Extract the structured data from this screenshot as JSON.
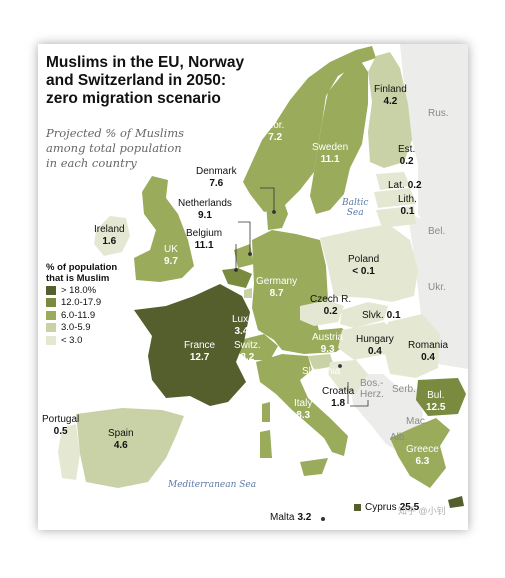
{
  "title": "Muslims in the EU, Norway\nand Switzerland in 2050:\nzero migration scenario",
  "subtitle": "Projected % of Muslims\namong total population\nin each country",
  "colors": {
    "c1": "#555e2d",
    "c2": "#7a8a3f",
    "c3": "#9aab5c",
    "c4": "#c9d2a6",
    "c5": "#e4e8d3",
    "noData": "#ececea",
    "sea": "#ffffff"
  },
  "legend": {
    "title": "% of population\nthat is Muslim",
    "items": [
      {
        "label": "> 18.0%",
        "color": "#555e2d"
      },
      {
        "label": "12.0-17.9",
        "color": "#7a8a3f"
      },
      {
        "label": "6.0-11.9",
        "color": "#9aab5c"
      },
      {
        "label": "3.0-5.9",
        "color": "#c9d2a6"
      },
      {
        "label": "< 3.0",
        "color": "#e4e8d3"
      }
    ]
  },
  "countries": [
    {
      "name": "Finland",
      "value": "4.2"
    },
    {
      "name": "Nor.",
      "value": "7.2"
    },
    {
      "name": "Sweden",
      "value": "11.1"
    },
    {
      "name": "Est.",
      "value": "0.2"
    },
    {
      "name": "Lat.",
      "value": "0.2"
    },
    {
      "name": "Lith.",
      "value": "0.1"
    },
    {
      "name": "Denmark",
      "value": "7.6"
    },
    {
      "name": "Netherlands",
      "value": "9.1"
    },
    {
      "name": "Belgium",
      "value": "11.1"
    },
    {
      "name": "Ireland",
      "value": "1.6"
    },
    {
      "name": "UK",
      "value": "9.7"
    },
    {
      "name": "Poland",
      "value": "< 0.1"
    },
    {
      "name": "Germany",
      "value": "8.7"
    },
    {
      "name": "Czech R.",
      "value": "0.2"
    },
    {
      "name": "Slvk.",
      "value": "0.1"
    },
    {
      "name": "Lux.",
      "value": "3.4"
    },
    {
      "name": "France",
      "value": "12.7"
    },
    {
      "name": "Switz.",
      "value": "8.2"
    },
    {
      "name": "Austria",
      "value": "9.3"
    },
    {
      "name": "Hungary",
      "value": "0.4"
    },
    {
      "name": "Romania",
      "value": "0.4"
    },
    {
      "name": "Slovenia",
      "value": "4.3"
    },
    {
      "name": "Croatia",
      "value": "1.8"
    },
    {
      "name": "Italy",
      "value": "8.3"
    },
    {
      "name": "Bul.",
      "value": "12.5"
    },
    {
      "name": "Portugal",
      "value": "0.5"
    },
    {
      "name": "Spain",
      "value": "4.6"
    },
    {
      "name": "Greece",
      "value": "6.3"
    },
    {
      "name": "Cyprus",
      "value": "25.5"
    },
    {
      "name": "Malta",
      "value": "3.2"
    }
  ],
  "neighbors": [
    "Rus.",
    "Bel.",
    "Ukr.",
    "Bos.-\nHerz.",
    "Serb.",
    "Mac.",
    "Alb."
  ],
  "seas": [
    "Baltic\nSea",
    "Mediterranean Sea"
  ],
  "watermark": "知乎 @小钊"
}
